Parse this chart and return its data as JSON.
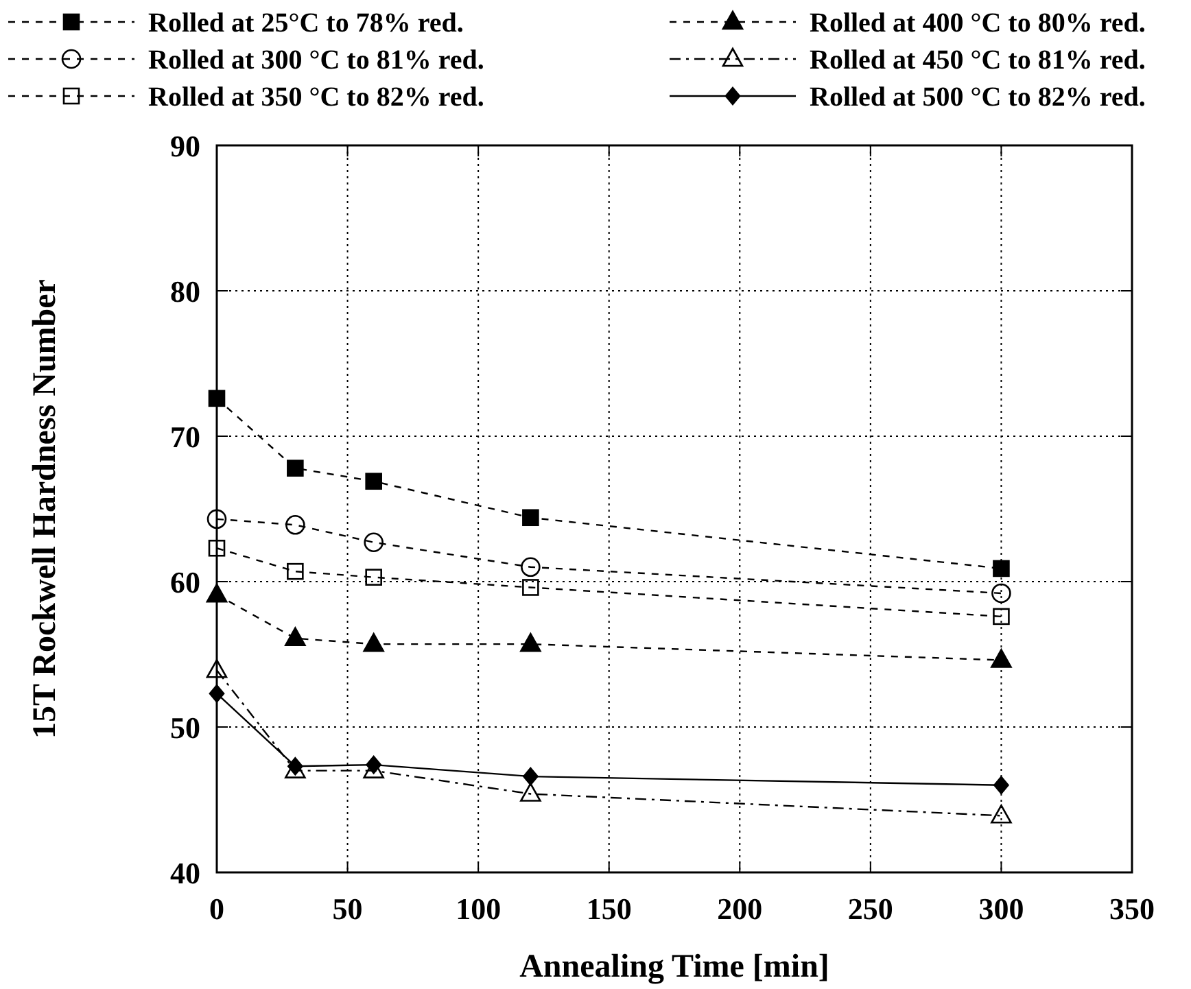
{
  "chart_data": {
    "type": "line",
    "xlabel": "Annealing Time [min]",
    "ylabel": "15T Rockwell Hardness Number",
    "xlim": [
      0,
      350
    ],
    "xticks": [
      0,
      50,
      100,
      150,
      200,
      250,
      300,
      350
    ],
    "ylim": [
      40,
      90
    ],
    "yticks": [
      40,
      50,
      60,
      70,
      80,
      90
    ],
    "grid": true,
    "legend": "top",
    "series": [
      {
        "name": "Rolled at 25°C to 78% red.",
        "color": "#000000",
        "marker": "square",
        "line_style": "dashed",
        "x": [
          0,
          30,
          60,
          120,
          300
        ],
        "values": [
          72.6,
          67.8,
          66.9,
          64.4,
          60.9
        ]
      },
      {
        "name": "Rolled at 300 °C to 81% red.",
        "color": "#000000",
        "marker": "circle",
        "line_style": "dashed",
        "x": [
          0,
          30,
          60,
          120,
          300
        ],
        "values": [
          64.3,
          63.9,
          62.7,
          61.0,
          59.2
        ]
      },
      {
        "name": "Rolled at 350 °C to 82% red.",
        "color": "#000000",
        "marker": "square",
        "line_style": "dashed",
        "x": [
          0,
          30,
          60,
          120,
          300
        ],
        "values": [
          62.3,
          60.7,
          60.3,
          59.6,
          57.6
        ]
      },
      {
        "name": "Rolled at 400 °C to 80% red.",
        "color": "#000000",
        "marker": "triangle",
        "line_style": "dashed",
        "x": [
          0,
          30,
          60,
          120,
          300
        ],
        "values": [
          59.1,
          56.1,
          55.7,
          55.7,
          54.6
        ]
      },
      {
        "name": "Rolled at 450 °C to 81% red.",
        "color": "#000000",
        "marker": "triangle",
        "line_style": "dotted",
        "x": [
          0,
          30,
          60,
          120,
          300
        ],
        "values": [
          53.9,
          47.0,
          47.0,
          45.4,
          43.9
        ]
      },
      {
        "name": "Rolled at 500 °C to 82% red.",
        "color": "#000000",
        "marker": "diamond",
        "line_style": "solid",
        "x": [
          0,
          30,
          60,
          120,
          300
        ],
        "values": [
          52.3,
          47.3,
          47.4,
          46.6,
          46.0
        ]
      }
    ]
  }
}
